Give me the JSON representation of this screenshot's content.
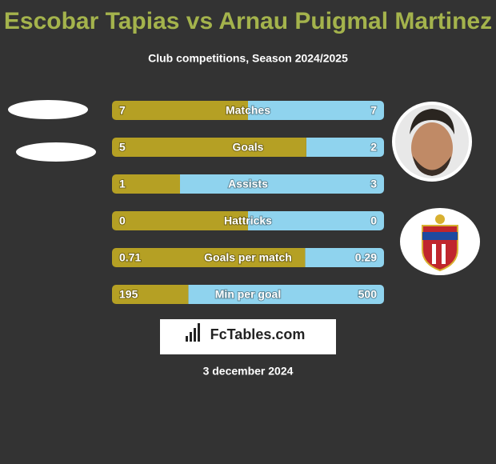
{
  "header": {
    "title": "Escobar Tapias vs Arnau Puigmal Martinez",
    "subtitle": "Club competitions, Season 2024/2025"
  },
  "rows": [
    {
      "label": "Matches",
      "left": 7,
      "right": 7
    },
    {
      "label": "Goals",
      "left": 5,
      "right": 2
    },
    {
      "label": "Assists",
      "left": 1,
      "right": 3
    },
    {
      "label": "Hattricks",
      "left": 0,
      "right": 0
    },
    {
      "label": "Goals per match",
      "left": 0.71,
      "right": 0.29
    },
    {
      "label": "Min per goal",
      "left": 195,
      "right": 500
    }
  ],
  "colors": {
    "left": "#b5a024",
    "right": "#8fd3ee"
  },
  "brand": "FcTables.com",
  "date": "3 december 2024"
}
